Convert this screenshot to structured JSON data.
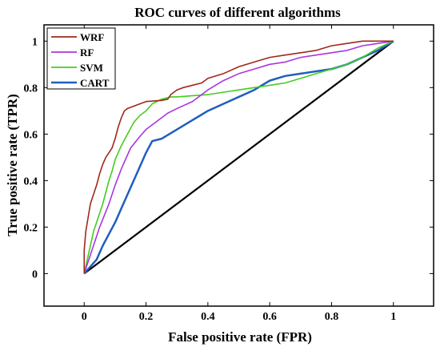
{
  "chart_data": {
    "type": "line",
    "title": "ROC curves of different algorithms",
    "xlabel": "False positive rate (FPR)",
    "ylabel": "True positive rate (TPR)",
    "xlim": [
      -0.13,
      1.13
    ],
    "ylim": [
      -0.14,
      1.07
    ],
    "xticks": [
      0,
      0.2,
      0.4,
      0.6,
      0.8,
      1
    ],
    "xtick_labels": [
      "0",
      "0.2",
      "0.4",
      "0.6",
      "0.8",
      "1"
    ],
    "yticks": [
      0,
      0.2,
      0.4,
      0.6,
      0.8,
      1
    ],
    "ytick_labels": [
      "0",
      "0.2",
      "0.4",
      "0.6",
      "0.8",
      "1"
    ],
    "grid": false,
    "legend_position": "top-left",
    "series": [
      {
        "name": "WRF",
        "color": "#a0281a",
        "points": [
          [
            0,
            0
          ],
          [
            0,
            0.1
          ],
          [
            0.005,
            0.18
          ],
          [
            0.01,
            0.22
          ],
          [
            0.015,
            0.26
          ],
          [
            0.02,
            0.3
          ],
          [
            0.03,
            0.34
          ],
          [
            0.04,
            0.38
          ],
          [
            0.05,
            0.43
          ],
          [
            0.06,
            0.47
          ],
          [
            0.07,
            0.5
          ],
          [
            0.08,
            0.52
          ],
          [
            0.09,
            0.54
          ],
          [
            0.1,
            0.58
          ],
          [
            0.11,
            0.63
          ],
          [
            0.12,
            0.67
          ],
          [
            0.13,
            0.7
          ],
          [
            0.14,
            0.71
          ],
          [
            0.16,
            0.72
          ],
          [
            0.18,
            0.73
          ],
          [
            0.2,
            0.74
          ],
          [
            0.25,
            0.745
          ],
          [
            0.27,
            0.75
          ],
          [
            0.28,
            0.77
          ],
          [
            0.3,
            0.79
          ],
          [
            0.32,
            0.8
          ],
          [
            0.35,
            0.81
          ],
          [
            0.38,
            0.82
          ],
          [
            0.4,
            0.84
          ],
          [
            0.45,
            0.86
          ],
          [
            0.5,
            0.89
          ],
          [
            0.55,
            0.91
          ],
          [
            0.6,
            0.93
          ],
          [
            0.65,
            0.94
          ],
          [
            0.7,
            0.95
          ],
          [
            0.75,
            0.96
          ],
          [
            0.8,
            0.98
          ],
          [
            0.85,
            0.99
          ],
          [
            0.9,
            1
          ],
          [
            0.95,
            1
          ],
          [
            1,
            1
          ]
        ]
      },
      {
        "name": "RF",
        "color": "#a936dd",
        "points": [
          [
            0,
            0
          ],
          [
            0.02,
            0.08
          ],
          [
            0.05,
            0.2
          ],
          [
            0.08,
            0.3
          ],
          [
            0.1,
            0.38
          ],
          [
            0.12,
            0.45
          ],
          [
            0.15,
            0.54
          ],
          [
            0.18,
            0.59
          ],
          [
            0.2,
            0.62
          ],
          [
            0.23,
            0.65
          ],
          [
            0.27,
            0.69
          ],
          [
            0.3,
            0.71
          ],
          [
            0.35,
            0.74
          ],
          [
            0.4,
            0.79
          ],
          [
            0.45,
            0.83
          ],
          [
            0.5,
            0.86
          ],
          [
            0.55,
            0.88
          ],
          [
            0.6,
            0.9
          ],
          [
            0.65,
            0.91
          ],
          [
            0.7,
            0.93
          ],
          [
            0.75,
            0.94
          ],
          [
            0.8,
            0.95
          ],
          [
            0.85,
            0.96
          ],
          [
            0.9,
            0.98
          ],
          [
            0.95,
            0.99
          ],
          [
            1,
            1
          ]
        ]
      },
      {
        "name": "SVM",
        "color": "#44cc22",
        "points": [
          [
            0,
            0
          ],
          [
            0.01,
            0.06
          ],
          [
            0.02,
            0.12
          ],
          [
            0.03,
            0.18
          ],
          [
            0.04,
            0.22
          ],
          [
            0.05,
            0.26
          ],
          [
            0.06,
            0.3
          ],
          [
            0.07,
            0.35
          ],
          [
            0.08,
            0.4
          ],
          [
            0.09,
            0.44
          ],
          [
            0.1,
            0.49
          ],
          [
            0.12,
            0.55
          ],
          [
            0.14,
            0.6
          ],
          [
            0.16,
            0.65
          ],
          [
            0.18,
            0.68
          ],
          [
            0.2,
            0.7
          ],
          [
            0.22,
            0.73
          ],
          [
            0.25,
            0.75
          ],
          [
            0.28,
            0.76
          ],
          [
            0.3,
            0.76
          ],
          [
            0.35,
            0.765
          ],
          [
            0.4,
            0.77
          ],
          [
            0.45,
            0.78
          ],
          [
            0.5,
            0.79
          ],
          [
            0.55,
            0.8
          ],
          [
            0.6,
            0.81
          ],
          [
            0.65,
            0.82
          ],
          [
            0.7,
            0.84
          ],
          [
            0.75,
            0.86
          ],
          [
            0.8,
            0.88
          ],
          [
            0.85,
            0.9
          ],
          [
            0.9,
            0.93
          ],
          [
            0.95,
            0.97
          ],
          [
            1,
            1
          ]
        ]
      },
      {
        "name": "CART",
        "color": "#1f5fbf",
        "points": [
          [
            0,
            0
          ],
          [
            0.02,
            0.03
          ],
          [
            0.04,
            0.06
          ],
          [
            0.06,
            0.12
          ],
          [
            0.08,
            0.17
          ],
          [
            0.1,
            0.22
          ],
          [
            0.12,
            0.28
          ],
          [
            0.14,
            0.34
          ],
          [
            0.16,
            0.4
          ],
          [
            0.18,
            0.46
          ],
          [
            0.2,
            0.52
          ],
          [
            0.22,
            0.57
          ],
          [
            0.25,
            0.58
          ],
          [
            0.3,
            0.62
          ],
          [
            0.35,
            0.66
          ],
          [
            0.4,
            0.7
          ],
          [
            0.45,
            0.73
          ],
          [
            0.5,
            0.76
          ],
          [
            0.55,
            0.79
          ],
          [
            0.6,
            0.83
          ],
          [
            0.65,
            0.85
          ],
          [
            0.7,
            0.86
          ],
          [
            0.75,
            0.87
          ],
          [
            0.8,
            0.88
          ],
          [
            0.85,
            0.9
          ],
          [
            0.9,
            0.93
          ],
          [
            0.95,
            0.96
          ],
          [
            1,
            1
          ]
        ]
      },
      {
        "name": "",
        "color": "#000000",
        "points": [
          [
            0,
            0
          ],
          [
            1,
            1
          ]
        ]
      }
    ]
  }
}
